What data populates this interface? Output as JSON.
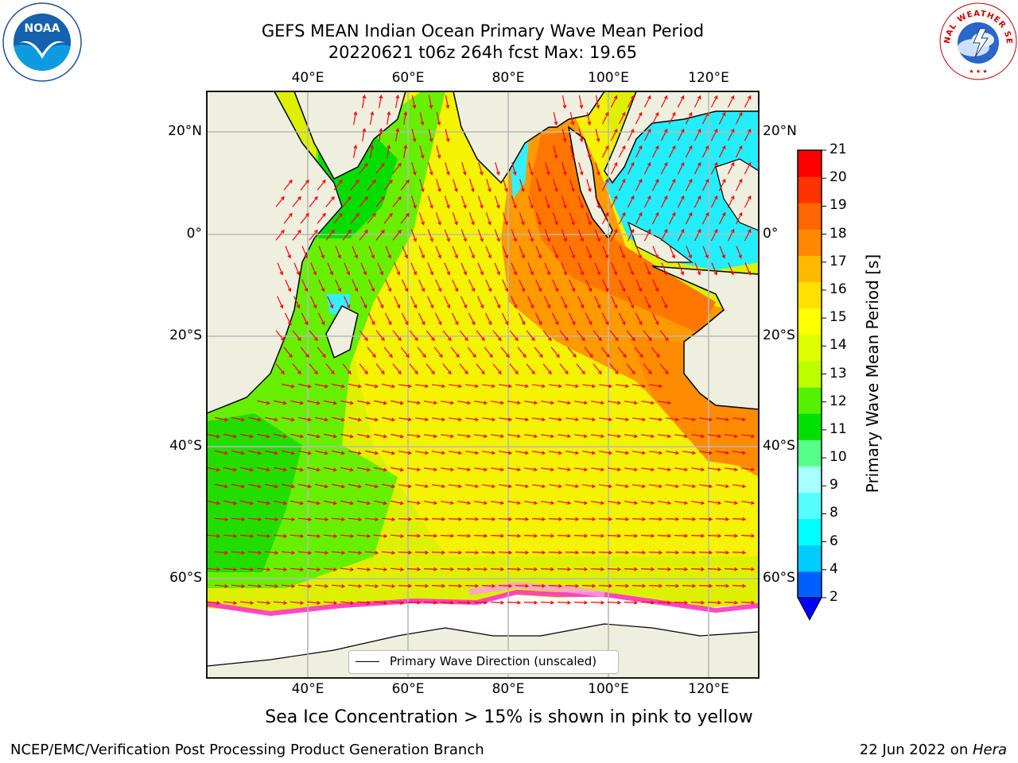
{
  "title_line1": "GEFS MEAN Indian Ocean Primary Wave Mean Period",
  "title_line2": "20220621 t06z 264h fcst   Max: 19.65",
  "logos": {
    "left": "NOAA",
    "right": "NATIONAL WEATHER SERVICE"
  },
  "lon_labels": [
    "40°E",
    "60°E",
    "80°E",
    "100°E",
    "120°E"
  ],
  "lat_labels": [
    "20°N",
    "0°",
    "20°S",
    "40°S",
    "60°S"
  ],
  "legend_label": "Primary Wave Direction (unscaled)",
  "colorbar": {
    "title": "Primary Wave Mean Period [s]",
    "ticks": [
      "2",
      "4",
      "6",
      "8",
      "9",
      "10",
      "11",
      "12",
      "13",
      "14",
      "15",
      "16",
      "17",
      "18",
      "19",
      "20",
      "21"
    ],
    "colors": [
      "#0060ff",
      "#00ccff",
      "#00ffff",
      "#55ffff",
      "#a8ffff",
      "#55ff88",
      "#00e000",
      "#55f000",
      "#bbff00",
      "#ddff00",
      "#ffff00",
      "#ffe000",
      "#ffbb00",
      "#ff8800",
      "#ff6600",
      "#ff3300",
      "#ff0000"
    ],
    "under_color": "#0000ff"
  },
  "colors": {
    "land": "#efefdf",
    "ice": "#ffffff",
    "arrow": "#ff0000",
    "grid": "#b8b8b8"
  },
  "footnote": "Sea Ice Concentration > 15% is shown in pink to yellow",
  "footer_left": "NCEP/EMC/Verification Post Processing Product Generation Branch",
  "footer_date": "22 Jun 2022 on ",
  "footer_host": "Hera"
}
